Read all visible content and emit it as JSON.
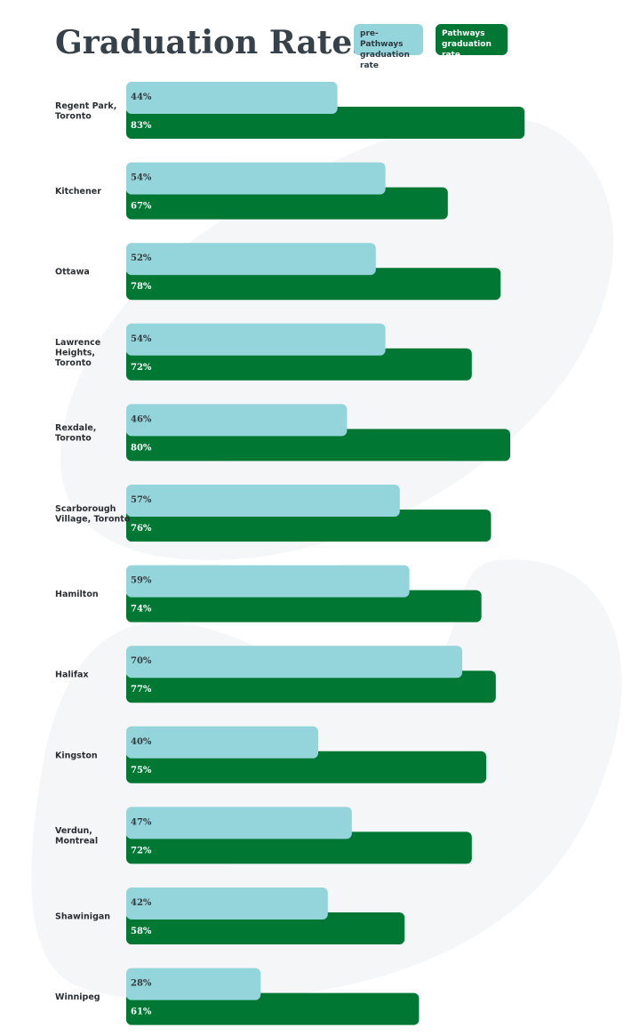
{
  "header": {
    "title": "Graduation Rates"
  },
  "legend": {
    "pre": "pre-Pathways\ngraduation rate",
    "post": "Pathways\ngraduation rate"
  },
  "colors": {
    "pre": "#94d4db",
    "post": "#007833",
    "background_shape": "#f5f6f8",
    "title": "#36414a"
  },
  "chart_data": {
    "type": "bar",
    "orientation": "horizontal",
    "categories": [
      "Regent Park,\nToronto",
      "Kitchener",
      "Ottawa",
      "Lawrence\nHeights,\nToronto",
      "Rexdale,\nToronto",
      "Scarborough\nVillage, Toronto",
      "Hamilton",
      "Halifax",
      "Kingston",
      "Verdun,\nMontreal",
      "Shawinigan",
      "Winnipeg"
    ],
    "series": [
      {
        "name": "pre-Pathways graduation rate",
        "values": [
          44,
          54,
          52,
          54,
          46,
          57,
          59,
          70,
          40,
          47,
          42,
          28
        ]
      },
      {
        "name": "Pathways graduation rate",
        "values": [
          83,
          67,
          78,
          72,
          80,
          76,
          74,
          77,
          75,
          72,
          58,
          61
        ]
      }
    ],
    "value_suffix": "%",
    "xlim": [
      0,
      100
    ],
    "grid": false,
    "legend_position": "top-right"
  }
}
